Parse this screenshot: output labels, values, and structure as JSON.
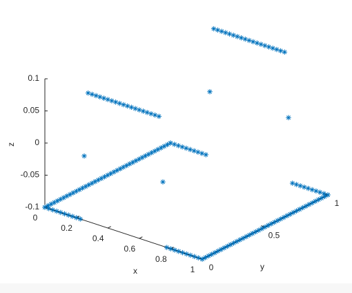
{
  "chart_data": {
    "type": "scatter3d",
    "x_label": "x",
    "y_label": "y",
    "z_label": "z",
    "xlim": [
      0,
      1
    ],
    "ylim": [
      0,
      1
    ],
    "zlim": [
      -0.1,
      0.1
    ],
    "xticks": [
      0,
      0.2,
      0.4,
      0.6,
      0.8,
      1
    ],
    "yticks": [
      0,
      0.5,
      1
    ],
    "zticks": [
      -0.1,
      -0.05,
      0,
      0.05,
      0.1
    ],
    "grid": false,
    "marker": "*",
    "series": [
      {
        "color": "#0072BD",
        "x": [
          0,
          0.025,
          0.05,
          0.075,
          0.1,
          0.125,
          0.15,
          0.175,
          0.2,
          0.225,
          0.25,
          0.275,
          0.3,
          0.325,
          0.35,
          0.375,
          0.4,
          0.425,
          0.45,
          0.475,
          0.5,
          0.525,
          0.55,
          0.575,
          0.6,
          0.625,
          0.65,
          0.675,
          0.7,
          0.725,
          0.75,
          0.775,
          0.8,
          0.825,
          0.85,
          0.875,
          0.9,
          0.925,
          0.95,
          0.975,
          1
        ],
        "y": [
          0,
          0,
          0,
          0,
          0,
          0,
          0,
          0,
          0,
          0,
          0,
          0,
          0,
          0,
          0,
          0,
          0,
          0,
          0,
          0,
          0,
          0,
          0,
          0,
          0,
          0,
          0,
          0,
          0,
          0,
          0,
          0,
          0,
          0,
          0,
          0,
          0,
          0,
          0,
          0,
          0
        ],
        "z": [
          -0.1,
          -0.1,
          -0.1,
          -0.1,
          -0.1,
          -0.1,
          -0.1,
          -0.1,
          -0.1,
          -0.1,
          0,
          0.1,
          0.1,
          0.1,
          0.1,
          0.1,
          0.1,
          0.1,
          0.1,
          0.1,
          0.1,
          0.1,
          0.1,
          0.1,
          0.1,
          0.1,
          0.1,
          0.1,
          0.1,
          0.1,
          0,
          -0.1,
          -0.1,
          -0.1,
          -0.1,
          -0.1,
          -0.1,
          -0.1,
          -0.1,
          -0.1,
          -0.1
        ]
      },
      {
        "color": "#0072BD",
        "x": [
          0,
          0.025,
          0.05,
          0.075,
          0.1,
          0.125,
          0.15,
          0.175,
          0.2,
          0.225,
          0.25,
          0.275,
          0.3,
          0.325,
          0.35,
          0.375,
          0.4,
          0.425,
          0.45,
          0.475,
          0.5,
          0.525,
          0.55,
          0.575,
          0.6,
          0.625,
          0.65,
          0.675,
          0.7,
          0.725,
          0.75,
          0.775,
          0.8,
          0.825,
          0.85,
          0.875,
          0.9,
          0.925,
          0.95,
          0.975,
          1
        ],
        "y": [
          1,
          1,
          1,
          1,
          1,
          1,
          1,
          1,
          1,
          1,
          1,
          1,
          1,
          1,
          1,
          1,
          1,
          1,
          1,
          1,
          1,
          1,
          1,
          1,
          1,
          1,
          1,
          1,
          1,
          1,
          1,
          1,
          1,
          1,
          1,
          1,
          1,
          1,
          1,
          1,
          1
        ],
        "z": [
          -0.1,
          -0.1,
          -0.1,
          -0.1,
          -0.1,
          -0.1,
          -0.1,
          -0.1,
          -0.1,
          -0.1,
          0,
          0.1,
          0.1,
          0.1,
          0.1,
          0.1,
          0.1,
          0.1,
          0.1,
          0.1,
          0.1,
          0.1,
          0.1,
          0.1,
          0.1,
          0.1,
          0.1,
          0.1,
          0.1,
          0.1,
          0,
          -0.1,
          -0.1,
          -0.1,
          -0.1,
          -0.1,
          -0.1,
          -0.1,
          -0.1,
          -0.1,
          -0.1
        ]
      },
      {
        "color": "#0072BD",
        "x": [
          0,
          0,
          0,
          0,
          0,
          0,
          0,
          0,
          0,
          0,
          0,
          0,
          0,
          0,
          0,
          0,
          0,
          0,
          0,
          0,
          0,
          0,
          0,
          0,
          0,
          0,
          0,
          0,
          0,
          0,
          0,
          0,
          0,
          0,
          0,
          0,
          0,
          0,
          0,
          0,
          0
        ],
        "y": [
          0,
          0.025,
          0.05,
          0.075,
          0.1,
          0.125,
          0.15,
          0.175,
          0.2,
          0.225,
          0.25,
          0.275,
          0.3,
          0.325,
          0.35,
          0.375,
          0.4,
          0.425,
          0.45,
          0.475,
          0.5,
          0.525,
          0.55,
          0.575,
          0.6,
          0.625,
          0.65,
          0.675,
          0.7,
          0.725,
          0.75,
          0.775,
          0.8,
          0.825,
          0.85,
          0.875,
          0.9,
          0.925,
          0.95,
          0.975,
          1
        ],
        "z": [
          -0.1,
          -0.1,
          -0.1,
          -0.1,
          -0.1,
          -0.1,
          -0.1,
          -0.1,
          -0.1,
          -0.1,
          -0.1,
          -0.1,
          -0.1,
          -0.1,
          -0.1,
          -0.1,
          -0.1,
          -0.1,
          -0.1,
          -0.1,
          -0.1,
          -0.1,
          -0.1,
          -0.1,
          -0.1,
          -0.1,
          -0.1,
          -0.1,
          -0.1,
          -0.1,
          -0.1,
          -0.1,
          -0.1,
          -0.1,
          -0.1,
          -0.1,
          -0.1,
          -0.1,
          -0.1,
          -0.1,
          -0.1
        ]
      },
      {
        "color": "#0072BD",
        "x": [
          1,
          1,
          1,
          1,
          1,
          1,
          1,
          1,
          1,
          1,
          1,
          1,
          1,
          1,
          1,
          1,
          1,
          1,
          1,
          1,
          1,
          1,
          1,
          1,
          1,
          1,
          1,
          1,
          1,
          1,
          1,
          1,
          1,
          1,
          1,
          1,
          1,
          1,
          1,
          1,
          1
        ],
        "y": [
          0,
          0.025,
          0.05,
          0.075,
          0.1,
          0.125,
          0.15,
          0.175,
          0.2,
          0.225,
          0.25,
          0.275,
          0.3,
          0.325,
          0.35,
          0.375,
          0.4,
          0.425,
          0.45,
          0.475,
          0.5,
          0.525,
          0.55,
          0.575,
          0.6,
          0.625,
          0.65,
          0.675,
          0.7,
          0.725,
          0.75,
          0.775,
          0.8,
          0.825,
          0.85,
          0.875,
          0.9,
          0.925,
          0.95,
          0.975,
          1
        ],
        "z": [
          -0.1,
          -0.1,
          -0.1,
          -0.1,
          -0.1,
          -0.1,
          -0.1,
          -0.1,
          -0.1,
          -0.1,
          -0.1,
          -0.1,
          -0.1,
          -0.1,
          -0.1,
          -0.1,
          -0.1,
          -0.1,
          -0.1,
          -0.1,
          -0.1,
          -0.1,
          -0.1,
          -0.1,
          -0.1,
          -0.1,
          -0.1,
          -0.1,
          -0.1,
          -0.1,
          -0.1,
          -0.1,
          -0.1,
          -0.1,
          -0.1,
          -0.1,
          -0.1,
          -0.1,
          -0.1,
          -0.1,
          -0.1
        ]
      }
    ]
  }
}
